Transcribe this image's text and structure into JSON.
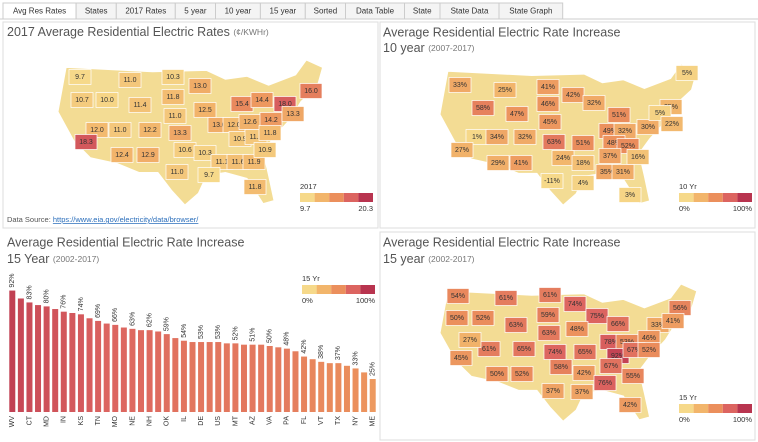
{
  "tabs": [
    "Avg Res Rates",
    "States",
    "2017 Rates",
    "5 year",
    "10 year",
    "15 year",
    "Sorted",
    "Data Table",
    "State",
    "State Data",
    "State Graph"
  ],
  "source": {
    "label": "Data Source:",
    "link": "https://www.eia.gov/electricity/data/browser/"
  },
  "chart_data": [
    {
      "type": "map",
      "title": "2017 Average Residential Electric Rates",
      "title_note": "(¢/KWHr)",
      "values": [
        9.7,
        10.7,
        10.0,
        11.0,
        10.3,
        11.4,
        11.8,
        13.0,
        15.4,
        16.0,
        18.0,
        11.0,
        12.5,
        14.4,
        12.0,
        11.0,
        12.2,
        13.3,
        13.0,
        12.0,
        12.6,
        14.2,
        13.3,
        18.3,
        12.4,
        12.9,
        10.6,
        10.9,
        11.0,
        11.8,
        10.3,
        11.1,
        11.6,
        11.9,
        10.9,
        11.0,
        9.7,
        11.8
      ],
      "value_labels": [
        "9.7",
        "10.7",
        "10.0",
        "11.0",
        "10.3",
        "11.4",
        "11.8",
        "13.0",
        "15.4",
        "16.0",
        "18.0",
        "11.0",
        "12.5",
        "14.4",
        "12.0",
        "11.0",
        "12.2",
        "13.3",
        "13.0",
        "12.0",
        "12.6",
        "14.2",
        "13.3",
        "18.3",
        "12.4",
        "12.9",
        "10.6",
        "10.9",
        "11.0",
        "11.8",
        "10.3",
        "11.1",
        "11.6",
        "11.9",
        "10.9",
        "11.0",
        "9.7",
        "11.8"
      ],
      "colorbar": {
        "title": "2017",
        "ticks": [
          9.7,
          20.3
        ],
        "colors": [
          "#f6d98a",
          "#f2b56b",
          "#eb8f5c",
          "#dc6460",
          "#b8344f"
        ]
      }
    },
    {
      "type": "map",
      "title": "Average Residential Electric Rate Increase",
      "subtitle": "10 year",
      "subtitle_note": "(2007-2017)",
      "values": [
        33,
        58,
        25,
        41,
        42,
        47,
        46,
        32,
        5,
        25,
        30,
        51,
        49,
        32,
        45,
        1,
        34,
        32,
        48,
        52,
        5,
        22,
        27,
        63,
        51,
        37,
        16,
        29,
        41,
        24,
        18,
        35,
        31,
        -11,
        4,
        3
      ],
      "value_labels": [
        "33%",
        "58%",
        "25%",
        "41%",
        "42%",
        "47%",
        "46%",
        "32%",
        "5%",
        "25%",
        "30%",
        "51%",
        "49%",
        "32%",
        "45%",
        "1%",
        "34%",
        "32%",
        "48%",
        "52%",
        "5%",
        "22%",
        "27%",
        "63%",
        "51%",
        "37%",
        "16%",
        "29%",
        "41%",
        "24%",
        "18%",
        "35%",
        "31%",
        "-11%",
        "4%",
        "3%"
      ],
      "colorbar": {
        "title": "10 Yr",
        "ticks": [
          {
            "value": 0,
            "label": "0%"
          },
          {
            "value": 100,
            "label": "100%"
          }
        ],
        "colors": [
          "#f6d98a",
          "#f2b56b",
          "#eb8f5c",
          "#dc6460",
          "#b8344f"
        ]
      }
    },
    {
      "type": "bar",
      "title": "Average Residential Electric Rate Increase",
      "subtitle": "15 Year",
      "subtitle_note": "(2002-2017)",
      "categories": [
        "WV",
        null,
        "CT",
        null,
        "MD",
        null,
        "IN",
        null,
        "KS",
        null,
        "TN",
        null,
        "MO",
        null,
        "NE",
        null,
        "NH",
        null,
        "OK",
        null,
        "IL",
        null,
        "DE",
        null,
        "US",
        null,
        "MT",
        null,
        "AZ",
        null,
        "VA",
        null,
        "PA",
        null,
        "FL",
        null,
        "VT",
        null,
        "TX",
        null,
        "NY",
        null,
        "ME"
      ],
      "values": [
        92,
        86,
        83,
        81,
        80,
        78,
        76,
        75,
        74,
        71,
        69,
        67,
        66,
        64,
        63,
        62,
        62,
        61,
        59,
        56,
        54,
        53,
        53,
        53,
        53,
        52,
        52,
        51,
        51,
        51,
        50,
        49,
        48,
        46,
        42,
        40,
        38,
        37,
        37,
        35,
        33,
        30,
        25
      ],
      "value_labels": [
        "92%",
        null,
        "83%",
        null,
        "80%",
        null,
        "76%",
        null,
        "74%",
        null,
        "69%",
        null,
        "66%",
        null,
        "63%",
        null,
        "62%",
        null,
        "59%",
        null,
        "54%",
        null,
        "53%",
        null,
        "53%",
        null,
        "52%",
        null,
        "51%",
        null,
        "50%",
        null,
        "48%",
        null,
        "42%",
        null,
        "38%",
        null,
        "37%",
        null,
        "33%",
        null,
        "25%"
      ],
      "ylim": [
        0,
        100
      ],
      "colorbar": {
        "title": "15 Yr",
        "ticks": [
          {
            "value": 0,
            "label": "0%"
          },
          {
            "value": 100,
            "label": "100%"
          }
        ],
        "colors": [
          "#f6d98a",
          "#f2b56b",
          "#eb8f5c",
          "#dc6460",
          "#b8344f"
        ]
      }
    },
    {
      "type": "map",
      "title": "Average Residential Electric Rate Increase",
      "subtitle": "15 year",
      "subtitle_note": "(2002-2017)",
      "values": [
        54,
        61,
        61,
        74,
        50,
        52,
        59,
        75,
        66,
        63,
        48,
        33,
        61,
        65,
        63,
        74,
        65,
        78,
        53,
        46,
        92,
        67,
        52,
        27,
        45,
        50,
        52,
        58,
        42,
        67,
        55,
        76,
        37,
        37,
        42,
        56,
        41
      ],
      "value_labels": [
        "54%",
        "61%",
        "61%",
        "74%",
        "50%",
        "52%",
        "59%",
        "75%",
        "66%",
        "63%",
        "48%",
        "33%",
        "61%",
        "65%",
        "63%",
        "74%",
        "65%",
        "78%",
        "53%",
        "46%",
        "92%",
        "67%",
        "52%",
        "27%",
        "45%",
        "50%",
        "52%",
        "58%",
        "42%",
        "67%",
        "55%",
        "76%",
        "37%",
        "37%",
        "42%",
        "56%",
        "41%"
      ],
      "colorbar": {
        "title": "15 Yr",
        "ticks": [
          {
            "value": 0,
            "label": "0%"
          },
          {
            "value": 100,
            "label": "100%"
          }
        ],
        "colors": [
          "#f6d98a",
          "#f2b56b",
          "#eb8f5c",
          "#dc6460",
          "#b8344f"
        ]
      }
    }
  ]
}
